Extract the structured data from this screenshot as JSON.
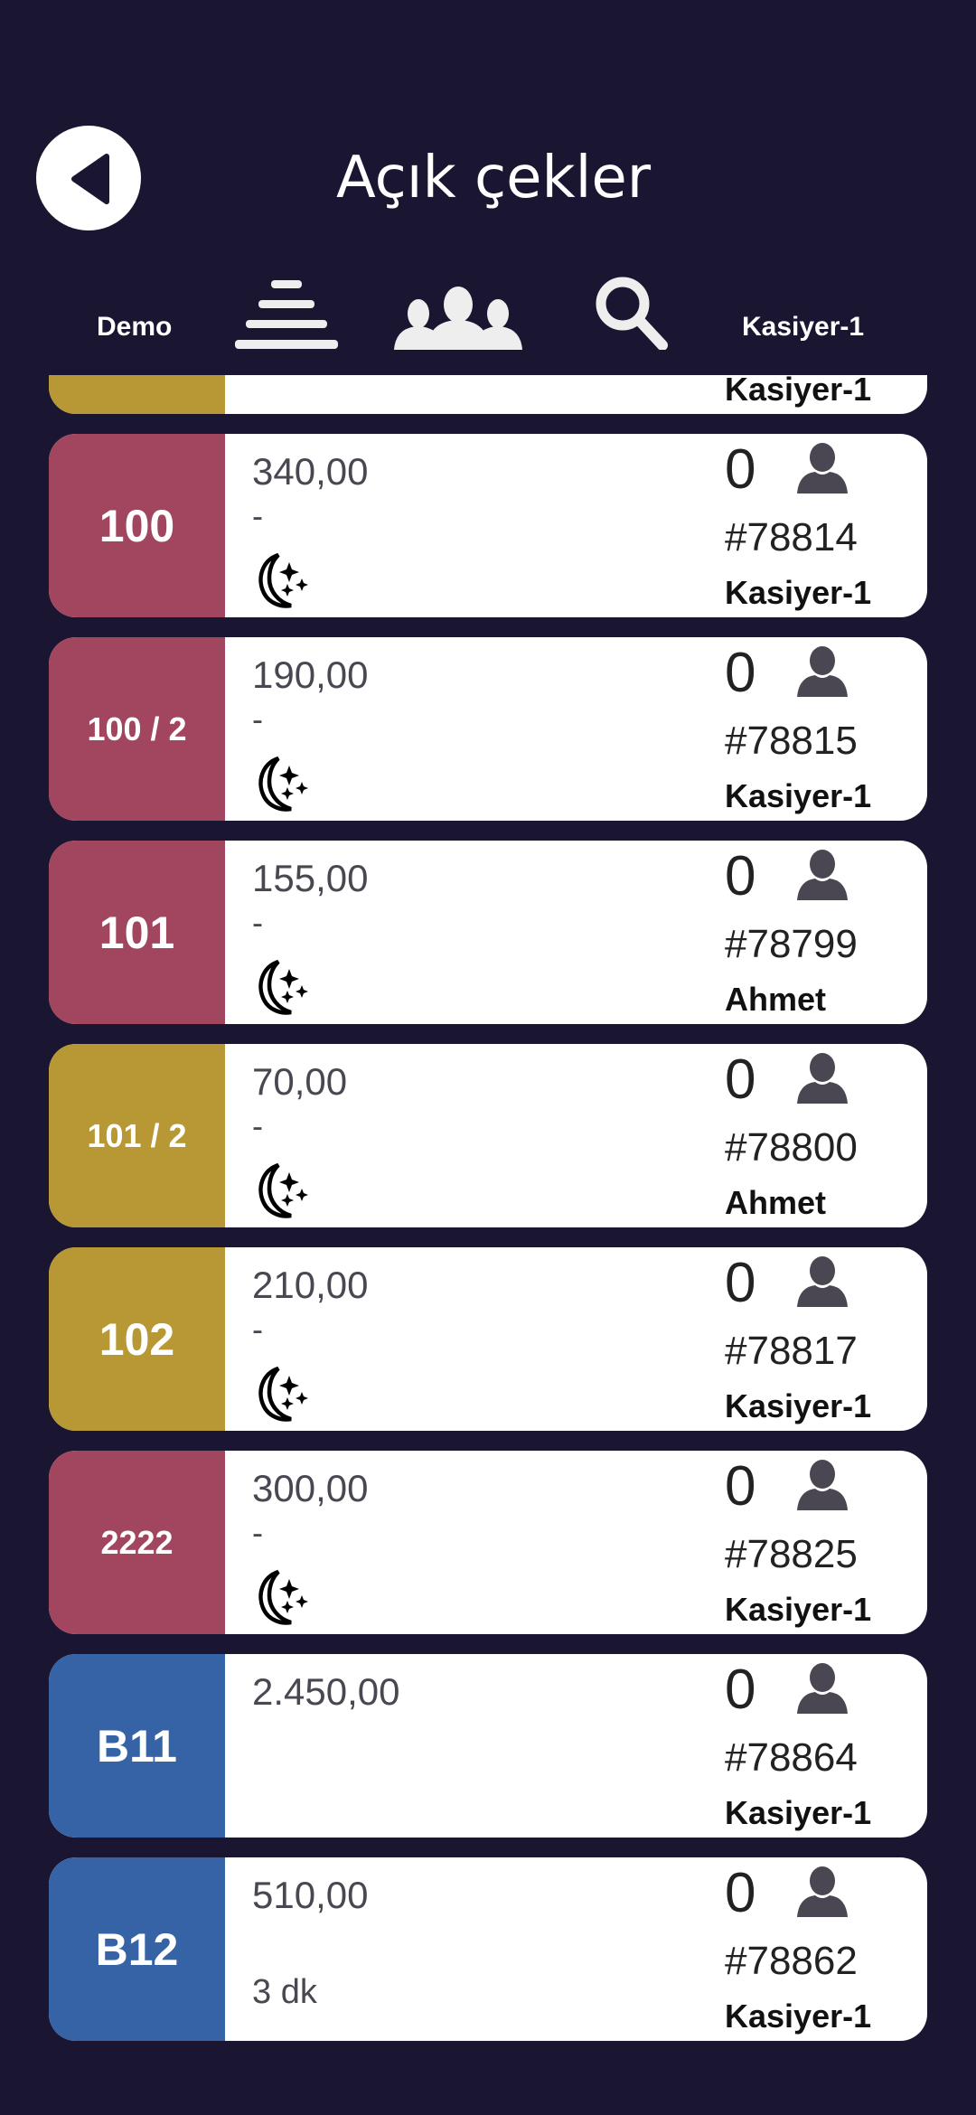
{
  "header": {
    "title": "Açık çekler",
    "left_label": "Demo",
    "right_label": "Kasiyer-1",
    "icons": [
      "back-icon",
      "sort-icon",
      "group-icon",
      "search-icon"
    ]
  },
  "colors": {
    "background": "#1a1530",
    "pink": "#a2455e",
    "gold": "#b89834",
    "blue": "#3563a6",
    "text": "#4a4752"
  },
  "partial_card": {
    "color": "#b89834",
    "user": "Kasiyer-1",
    "icon": "moon-stars-icon"
  },
  "checks": [
    {
      "table": "100",
      "color": "#a2455e",
      "amount": "340,00",
      "note": "-",
      "moon": true,
      "guests": "0",
      "number": "#78814",
      "user": "Kasiyer-1"
    },
    {
      "table": "100 / 2",
      "color": "#a2455e",
      "amount": "190,00",
      "note": "-",
      "moon": true,
      "guests": "0",
      "number": "#78815",
      "user": "Kasiyer-1"
    },
    {
      "table": "101",
      "color": "#a2455e",
      "amount": "155,00",
      "note": "-",
      "moon": true,
      "guests": "0",
      "number": "#78799",
      "user": "Ahmet"
    },
    {
      "table": "101 / 2",
      "color": "#b89834",
      "amount": "70,00",
      "note": "-",
      "moon": true,
      "guests": "0",
      "number": "#78800",
      "user": "Ahmet"
    },
    {
      "table": "102",
      "color": "#b89834",
      "amount": "210,00",
      "note": "-",
      "moon": true,
      "guests": "0",
      "number": "#78817",
      "user": "Kasiyer-1"
    },
    {
      "table": "2222",
      "color": "#a2455e",
      "amount": "300,00",
      "note": "-",
      "moon": true,
      "guests": "0",
      "number": "#78825",
      "user": "Kasiyer-1"
    },
    {
      "table": "B11",
      "color": "#3563a6",
      "amount": "2.450,00",
      "note": "",
      "moon": false,
      "guests": "0",
      "number": "#78864",
      "user": "Kasiyer-1"
    },
    {
      "table": "B12",
      "color": "#3563a6",
      "amount": "510,00",
      "note": "",
      "time": "3 dk",
      "moon": false,
      "guests": "0",
      "number": "#78862",
      "user": "Kasiyer-1"
    }
  ]
}
